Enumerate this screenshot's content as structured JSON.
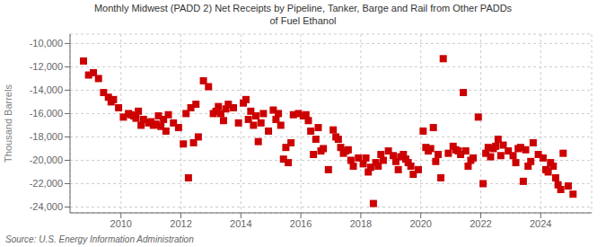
{
  "chart_data": {
    "type": "scatter",
    "title": "Monthly Midwest (PADD 2) Net Receipts by Pipeline, Tanker, Barge and Rail from Other PADDs\nof Fuel Ethanol",
    "ylabel": "Thousand Barrels",
    "annotations": [
      "Source: U.S. Energy Information Administration"
    ],
    "color": "#cc0000",
    "marker": "square",
    "grid": true,
    "xlim": [
      2008.3,
      2025.7
    ],
    "xticks": [
      2010,
      2012,
      2014,
      2016,
      2018,
      2020,
      2022,
      2024
    ],
    "ylim": [
      -24500,
      -9200
    ],
    "yticks": [
      {
        "value": -24000,
        "label": "-24,000"
      },
      {
        "value": -22000,
        "label": "-22,000"
      },
      {
        "value": -20000,
        "label": "-20,000"
      },
      {
        "value": -18000,
        "label": "-18,000"
      },
      {
        "value": -16000,
        "label": "-16,000"
      },
      {
        "value": -14000,
        "label": "-14,000"
      },
      {
        "value": -12000,
        "label": "-12,000"
      },
      {
        "value": -10000,
        "label": "-10,000"
      }
    ],
    "x": [
      2008.75,
      2008.92,
      2009.08,
      2009.25,
      2009.42,
      2009.58,
      2009.67,
      2009.75,
      2009.92,
      2010.08,
      2010.25,
      2010.33,
      2010.42,
      2010.5,
      2010.58,
      2010.67,
      2010.75,
      2010.92,
      2011.0,
      2011.08,
      2011.17,
      2011.25,
      2011.33,
      2011.42,
      2011.5,
      2011.58,
      2011.75,
      2011.92,
      2012.08,
      2012.17,
      2012.25,
      2012.33,
      2012.42,
      2012.5,
      2012.58,
      2012.75,
      2012.92,
      2013.08,
      2013.17,
      2013.25,
      2013.33,
      2013.42,
      2013.5,
      2013.58,
      2013.75,
      2013.92,
      2014.08,
      2014.17,
      2014.25,
      2014.33,
      2014.42,
      2014.5,
      2014.58,
      2014.67,
      2014.75,
      2014.92,
      2015.08,
      2015.17,
      2015.25,
      2015.33,
      2015.42,
      2015.5,
      2015.58,
      2015.67,
      2015.75,
      2015.92,
      2016.08,
      2016.17,
      2016.25,
      2016.33,
      2016.42,
      2016.5,
      2016.58,
      2016.67,
      2016.75,
      2016.92,
      2017.08,
      2017.17,
      2017.25,
      2017.33,
      2017.42,
      2017.5,
      2017.58,
      2017.67,
      2017.75,
      2017.92,
      2018.08,
      2018.17,
      2018.25,
      2018.33,
      2018.42,
      2018.5,
      2018.58,
      2018.67,
      2018.75,
      2018.92,
      2019.08,
      2019.17,
      2019.25,
      2019.33,
      2019.42,
      2019.5,
      2019.58,
      2019.67,
      2019.75,
      2019.92,
      2020.08,
      2020.17,
      2020.25,
      2020.33,
      2020.42,
      2020.5,
      2020.58,
      2020.67,
      2020.75,
      2020.92,
      2021.08,
      2021.17,
      2021.25,
      2021.33,
      2021.42,
      2021.5,
      2021.58,
      2021.67,
      2021.75,
      2021.92,
      2022.08,
      2022.17,
      2022.25,
      2022.33,
      2022.42,
      2022.5,
      2022.58,
      2022.67,
      2022.75,
      2022.92,
      2023.08,
      2023.17,
      2023.25,
      2023.33,
      2023.42,
      2023.5,
      2023.58,
      2023.67,
      2023.75,
      2023.92,
      2024.08,
      2024.17,
      2024.25,
      2024.33,
      2024.42,
      2024.5,
      2024.58,
      2024.67,
      2024.75,
      2024.92,
      2025.08
    ],
    "values": [
      -11500,
      -12700,
      -12500,
      -13000,
      -14200,
      -14600,
      -15000,
      -14800,
      -15500,
      -16300,
      -16000,
      -16100,
      -16200,
      -16400,
      -15800,
      -17000,
      -16500,
      -16800,
      -16700,
      -17000,
      -16900,
      -16200,
      -17100,
      -16500,
      -17500,
      -16100,
      -16800,
      -17200,
      -18600,
      -16000,
      -21500,
      -15500,
      -18500,
      -15200,
      -18000,
      -13200,
      -13700,
      -16000,
      -15800,
      -15400,
      -16000,
      -16600,
      -15600,
      -15200,
      -15500,
      -16800,
      -15100,
      -14800,
      -16500,
      -15800,
      -17000,
      -16200,
      -18400,
      -16800,
      -16000,
      -17500,
      -15700,
      -16500,
      -16000,
      -17000,
      -19900,
      -18900,
      -20200,
      -18500,
      -16100,
      -16000,
      -16200,
      -16100,
      -16600,
      -17500,
      -19500,
      -18200,
      -17200,
      -19200,
      -19000,
      -20800,
      -17400,
      -18000,
      -18200,
      -18900,
      -19400,
      -19200,
      -19100,
      -20000,
      -20500,
      -19800,
      -20300,
      -19800,
      -21000,
      -20600,
      -23700,
      -20200,
      -20500,
      -19500,
      -20000,
      -19200,
      -19600,
      -20100,
      -20800,
      -19700,
      -19500,
      -19900,
      -20200,
      -20500,
      -21200,
      -20800,
      -17500,
      -18900,
      -19200,
      -19000,
      -17200,
      -20100,
      -19500,
      -21500,
      -11300,
      -19400,
      -18800,
      -19100,
      -19200,
      -19500,
      -14200,
      -19200,
      -20500,
      -20000,
      -19800,
      -16300,
      -22000,
      -19400,
      -18900,
      -19700,
      -19000,
      -18800,
      -18200,
      -19600,
      -18700,
      -19200,
      -19600,
      -20200,
      -19000,
      -18900,
      -21800,
      -19100,
      -20500,
      -20100,
      -18500,
      -19500,
      -19800,
      -20800,
      -21000,
      -20200,
      -20500,
      -21500,
      -22100,
      -22500,
      -19400,
      -22200,
      -22900
    ]
  }
}
